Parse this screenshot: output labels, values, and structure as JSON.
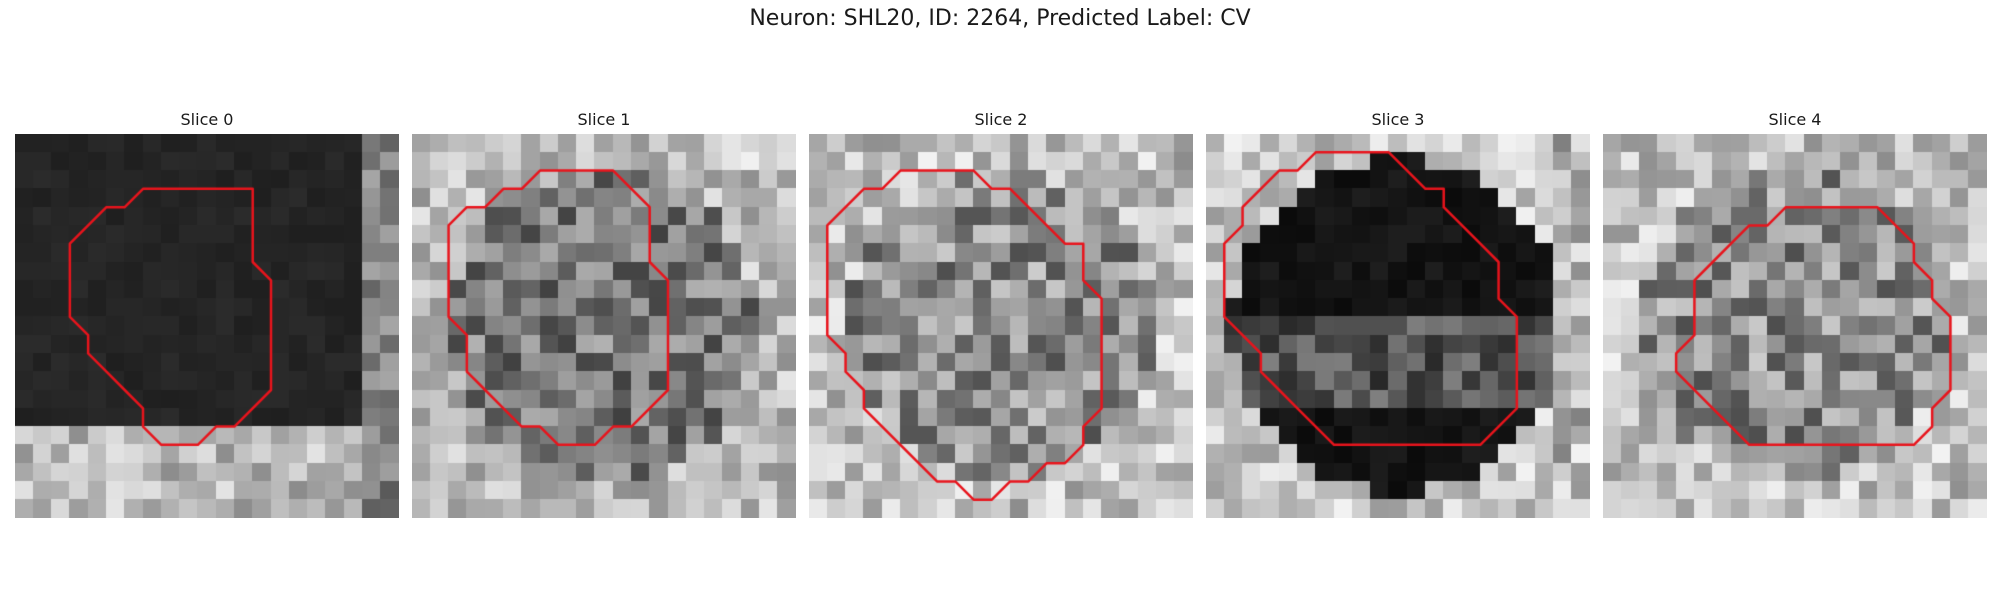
{
  "figure": {
    "title": "Neuron: SHL20, ID: 2264, Predicted Label: CV",
    "contour_color": "#e8141c"
  },
  "slices": [
    {
      "title": "Slice 0",
      "pattern": "dark_low",
      "seed": 11,
      "contour": [
        [
          10,
          3
        ],
        [
          13,
          3
        ],
        [
          13,
          7
        ],
        [
          14,
          8
        ],
        [
          14,
          14
        ],
        [
          12,
          16
        ],
        [
          11,
          16
        ],
        [
          10,
          17
        ],
        [
          8,
          17
        ],
        [
          7,
          16
        ],
        [
          7,
          15
        ],
        [
          6,
          14
        ],
        [
          5,
          13
        ],
        [
          4,
          12
        ],
        [
          4,
          11
        ],
        [
          3,
          10
        ],
        [
          3,
          6
        ],
        [
          5,
          4
        ],
        [
          6,
          4
        ],
        [
          7,
          3
        ]
      ]
    },
    {
      "title": "Slice 1",
      "pattern": "medium_ring",
      "seed": 23,
      "contour": [
        [
          7,
          2
        ],
        [
          11,
          2
        ],
        [
          13,
          4
        ],
        [
          13,
          7
        ],
        [
          14,
          8
        ],
        [
          14,
          14
        ],
        [
          12,
          16
        ],
        [
          11,
          16
        ],
        [
          10,
          17
        ],
        [
          8,
          17
        ],
        [
          7,
          16
        ],
        [
          6,
          16
        ],
        [
          5,
          15
        ],
        [
          4,
          14
        ],
        [
          3,
          13
        ],
        [
          3,
          11
        ],
        [
          2,
          10
        ],
        [
          2,
          5
        ],
        [
          3,
          4
        ],
        [
          4,
          4
        ],
        [
          5,
          3
        ],
        [
          6,
          3
        ]
      ]
    },
    {
      "title": "Slice 2",
      "pattern": "bright_ring",
      "seed": 37,
      "contour": [
        [
          7,
          2
        ],
        [
          9,
          2
        ],
        [
          10,
          3
        ],
        [
          11,
          3
        ],
        [
          14,
          6
        ],
        [
          15,
          6
        ],
        [
          15,
          8
        ],
        [
          16,
          9
        ],
        [
          16,
          15
        ],
        [
          15,
          16
        ],
        [
          15,
          17
        ],
        [
          14,
          18
        ],
        [
          13,
          18
        ],
        [
          12,
          19
        ],
        [
          11,
          19
        ],
        [
          10,
          20
        ],
        [
          9,
          20
        ],
        [
          8,
          19
        ],
        [
          7,
          19
        ],
        [
          3,
          15
        ],
        [
          3,
          14
        ],
        [
          2,
          13
        ],
        [
          2,
          12
        ],
        [
          1,
          11
        ],
        [
          1,
          5
        ],
        [
          3,
          3
        ],
        [
          4,
          3
        ],
        [
          5,
          2
        ]
      ]
    },
    {
      "title": "Slice 3",
      "pattern": "dark_center",
      "seed": 41,
      "contour": [
        [
          6,
          1
        ],
        [
          10,
          1
        ],
        [
          12,
          3
        ],
        [
          13,
          3
        ],
        [
          13,
          4
        ],
        [
          14,
          5
        ],
        [
          15,
          6
        ],
        [
          16,
          7
        ],
        [
          16,
          8
        ],
        [
          16,
          9
        ],
        [
          17,
          10
        ],
        [
          17,
          15
        ],
        [
          16,
          16
        ],
        [
          15,
          17
        ],
        [
          7,
          17
        ],
        [
          5,
          15
        ],
        [
          4,
          14
        ],
        [
          3,
          13
        ],
        [
          3,
          12
        ],
        [
          2,
          11
        ],
        [
          1,
          10
        ],
        [
          1,
          6
        ],
        [
          2,
          5
        ],
        [
          2,
          4
        ],
        [
          3,
          3
        ],
        [
          4,
          2
        ],
        [
          5,
          2
        ]
      ]
    },
    {
      "title": "Slice 4",
      "pattern": "bright_ring",
      "seed": 53,
      "contour": [
        [
          10,
          4
        ],
        [
          15,
          4
        ],
        [
          17,
          6
        ],
        [
          17,
          7
        ],
        [
          18,
          8
        ],
        [
          18,
          9
        ],
        [
          19,
          10
        ],
        [
          19,
          14
        ],
        [
          18,
          15
        ],
        [
          18,
          16
        ],
        [
          17,
          17
        ],
        [
          12,
          17
        ],
        [
          8,
          17
        ],
        [
          6,
          15
        ],
        [
          4,
          13
        ],
        [
          4,
          12
        ],
        [
          5,
          11
        ],
        [
          5,
          8
        ],
        [
          6,
          7
        ],
        [
          7,
          6
        ],
        [
          8,
          5
        ],
        [
          9,
          5
        ]
      ]
    }
  ]
}
